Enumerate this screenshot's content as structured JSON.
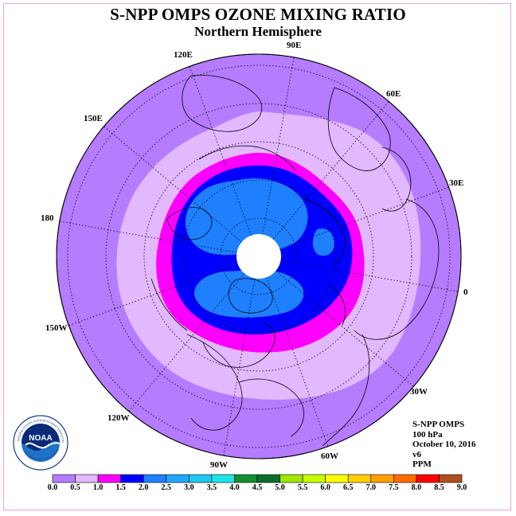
{
  "header": {
    "title": "S-NPP OMPS OZONE MIXING RATIO",
    "subtitle": "Northern Hemisphere"
  },
  "map": {
    "projection": "north-polar-stereographic",
    "land_outline": true,
    "longitude_labels": [
      "90E",
      "60E",
      "30E",
      "0",
      "30W",
      "60W",
      "90W",
      "120W",
      "150W",
      "180",
      "150E",
      "120E"
    ],
    "colors": {
      "background": "#ffffff",
      "disk": "#b57cff",
      "ring_light": "#e2b8ff",
      "magenta": "#ff00ff",
      "blue": "#0000ff",
      "mid_blue": "#1e80ff",
      "pole_mask": "#ffffff"
    }
  },
  "info": {
    "instrument": "S-NPP OMPS",
    "level": "100 hPa",
    "date": "October 10, 2016",
    "version": "v6",
    "units": "PPM"
  },
  "logo": {
    "text": "NOAA",
    "ring_text": "NATIONAL OCEANIC AND ATMOSPHERIC ADMINISTRATION",
    "ring_text_bottom": "U.S. DEPARTMENT OF COMMERCE",
    "icon": "noaa-logo-icon"
  },
  "colorbar": {
    "ticks": [
      "0.0",
      "0.5",
      "1.0",
      "1.5",
      "2.0",
      "2.5",
      "3.0",
      "3.5",
      "4.0",
      "4.5",
      "5.0",
      "5.5",
      "6.0",
      "6.5",
      "7.0",
      "7.5",
      "8.0",
      "8.5",
      "9.0"
    ],
    "colors": [
      "#b57cff",
      "#e2b8ff",
      "#ff00ff",
      "#0000ff",
      "#1e80ff",
      "#23a6ff",
      "#1ec8f0",
      "#1ee6e6",
      "#109030",
      "#0a6e2a",
      "#a0e600",
      "#c8ff00",
      "#ffff00",
      "#ffd000",
      "#ffa000",
      "#ff6a00",
      "#ff0000",
      "#b05020"
    ]
  }
}
